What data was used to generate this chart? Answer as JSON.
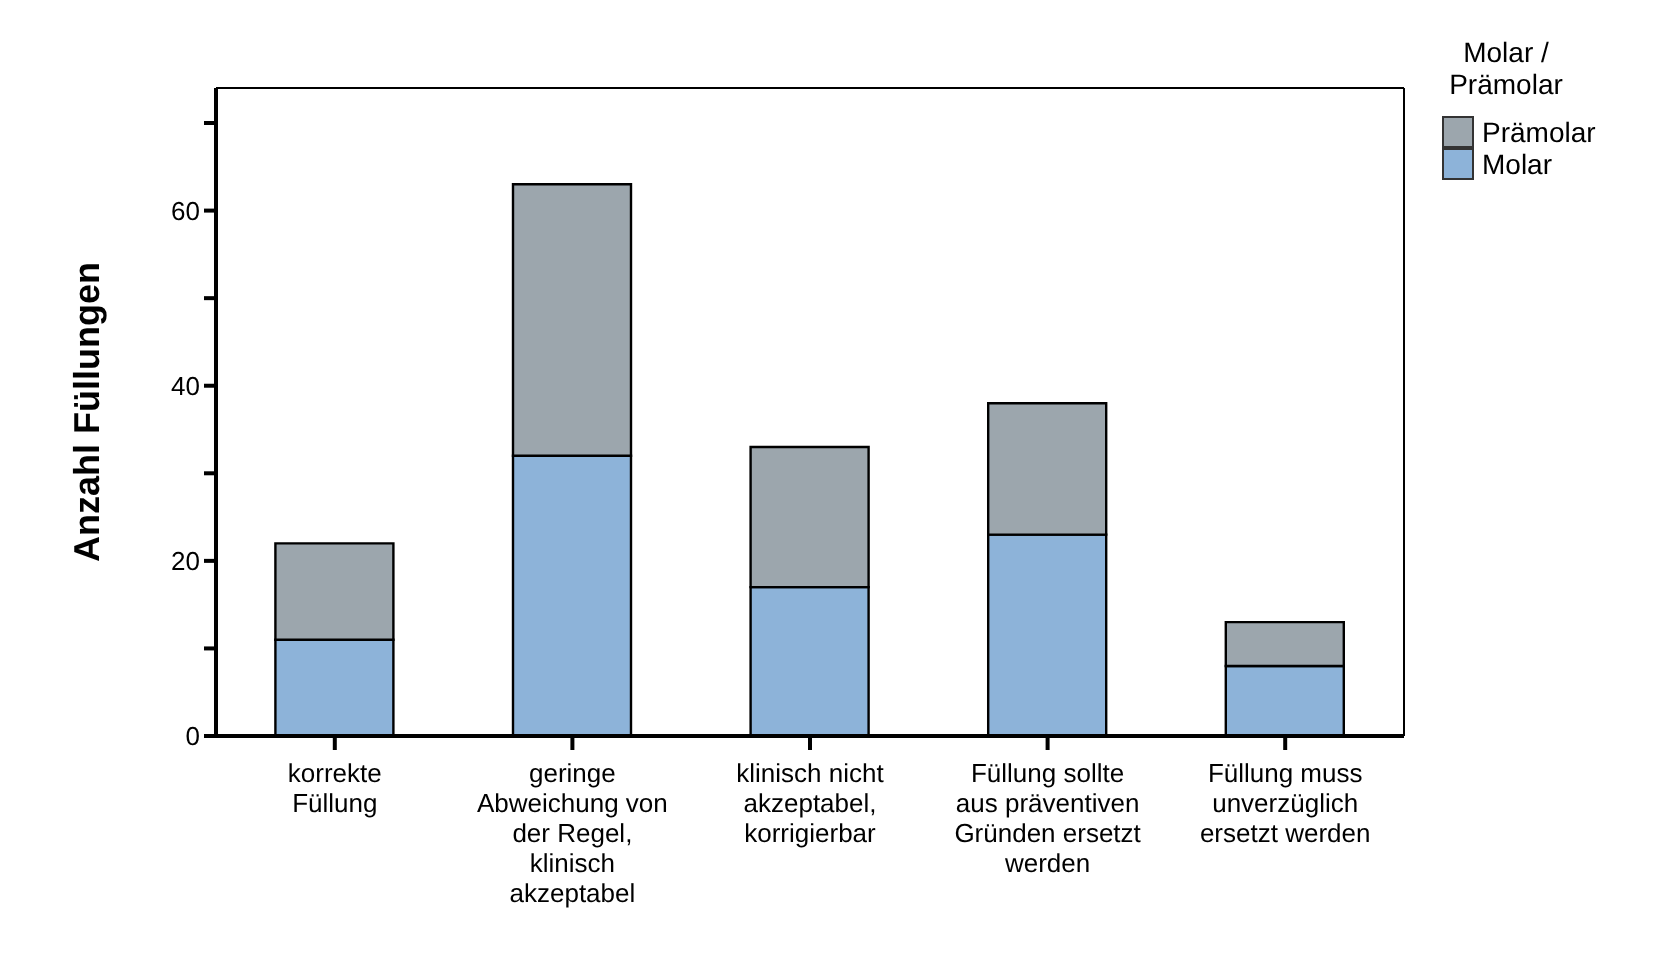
{
  "chart_data": {
    "type": "bar",
    "stacked": true,
    "ylabel": "Anzahl Füllungen",
    "legend_title": "Molar / Prämolar",
    "legend": "top right",
    "grid": false,
    "categories": [
      "korrekte Füllung",
      "geringe Abweichung von der Regel, klinisch akzeptabel",
      "klinisch nicht akzeptabel, korrigierbar",
      "Füllung sollte aus präventiven Gründen ersetzt werden",
      "Füllung muss unverzüglich ersetzt werden"
    ],
    "series": [
      {
        "name": "Molar",
        "color": "#8db3d9",
        "values": [
          11,
          32,
          17,
          23,
          8
        ]
      },
      {
        "name": "Prämolar",
        "color": "#9ca6ad",
        "values": [
          11,
          31,
          16,
          15,
          5
        ]
      }
    ],
    "ylim": [
      0,
      74
    ],
    "yticks": [
      0,
      {
        "value": 10,
        "label": null
      },
      20,
      {
        "value": 30,
        "label": null
      },
      40,
      {
        "value": 50,
        "label": null
      },
      60,
      {
        "value": 70,
        "label": null
      }
    ]
  }
}
